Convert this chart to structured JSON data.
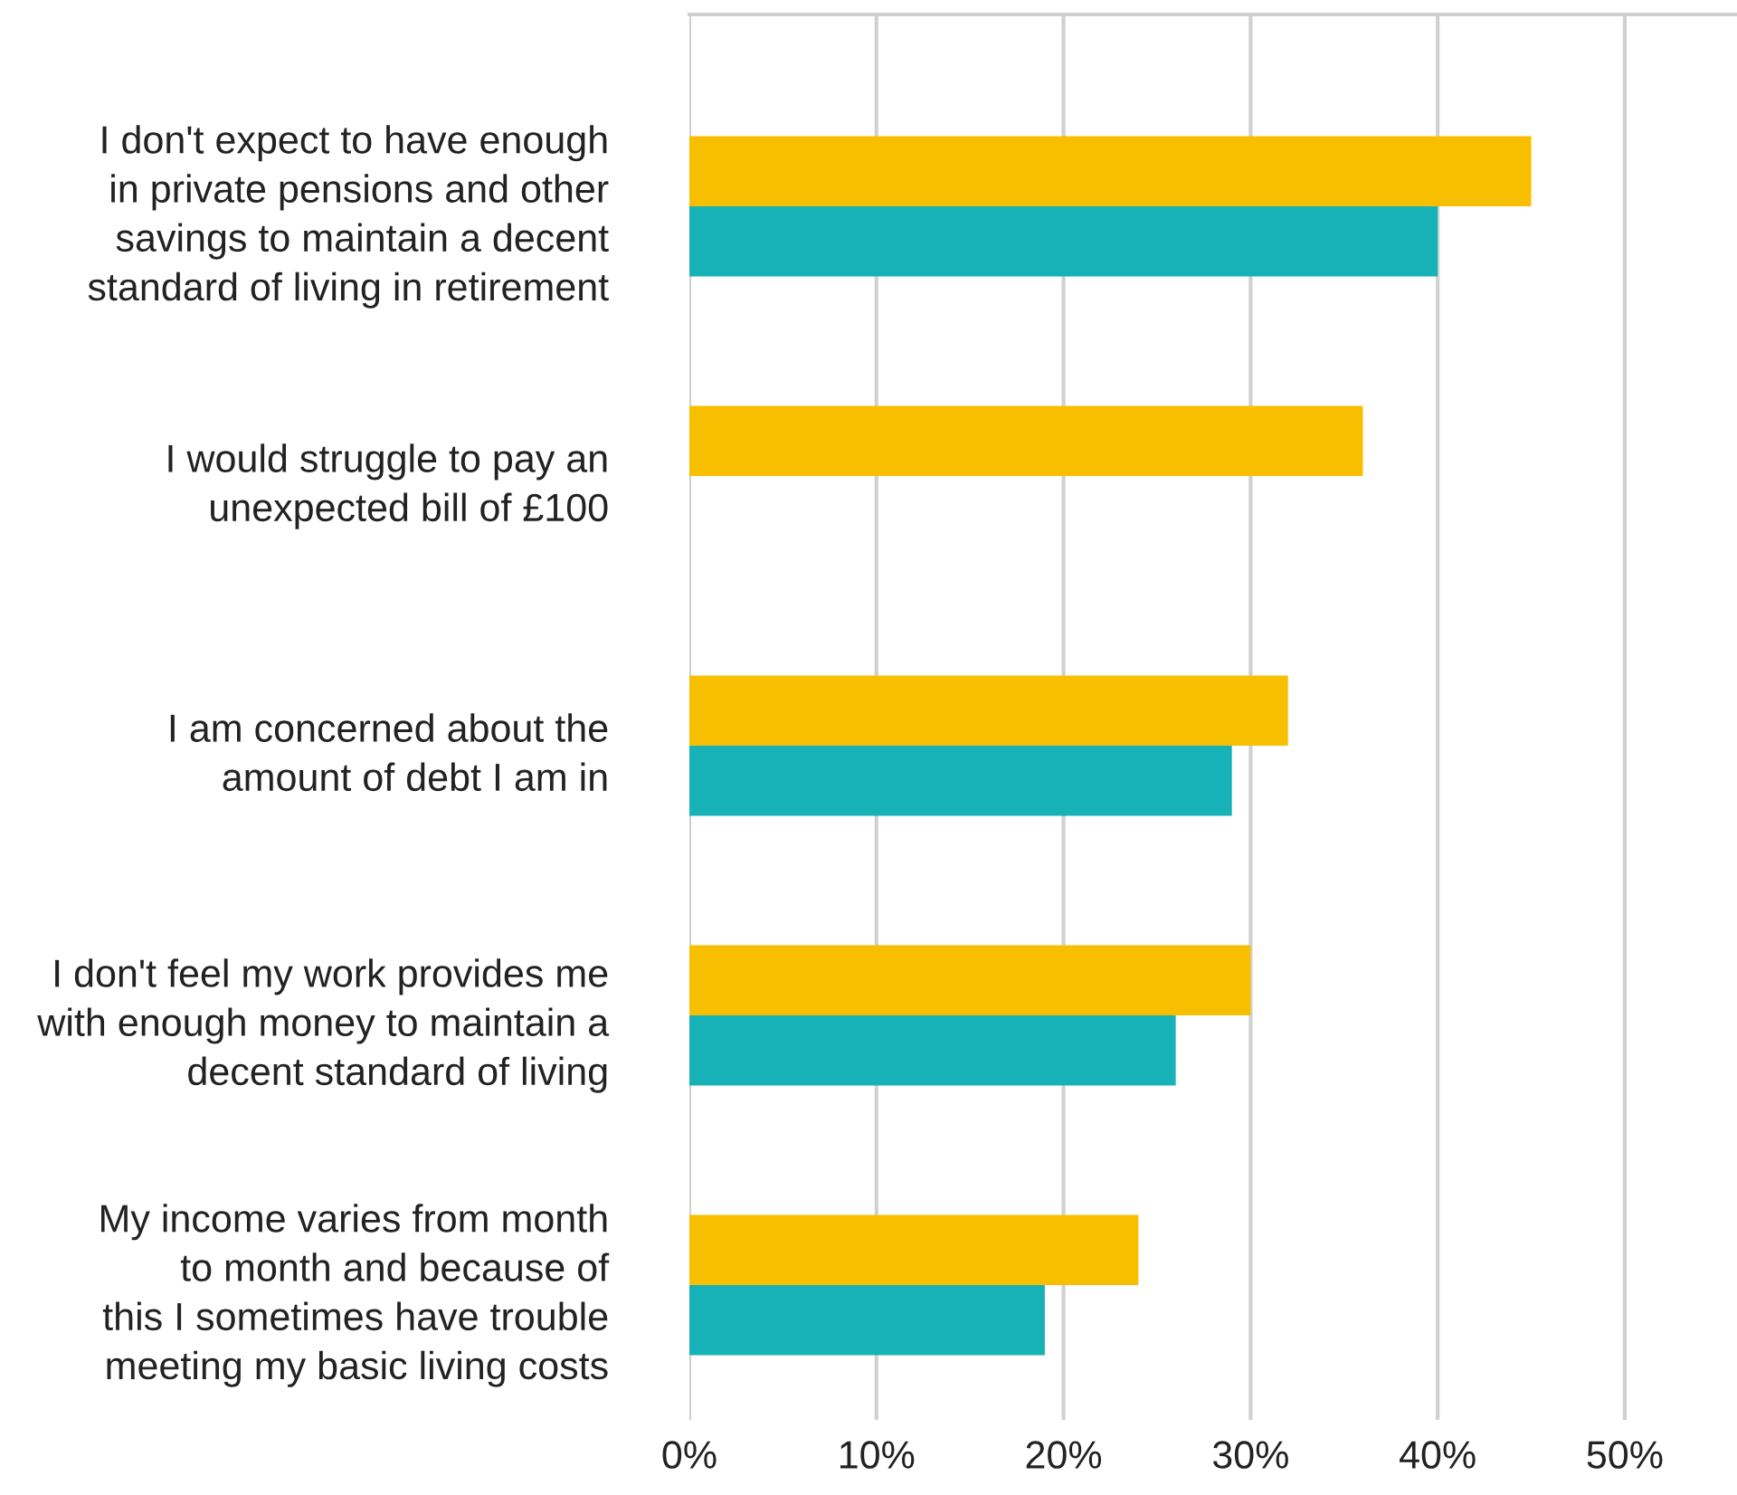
{
  "chart_data": {
    "type": "bar",
    "orientation": "horizontal",
    "categories": [
      "I don't expect to have enough\nin private pensions and other\nsavings to maintain a decent\nstandard of living in retirement",
      "I would struggle to pay an\nunexpected bill of £100",
      "I am concerned about the\namount of debt I am in",
      "I don't feel my work provides me\nwith enough money to maintain a\ndecent standard of living",
      "My income varies from month\nto month and because of\nthis I sometimes have trouble\nmeeting my basic living costs"
    ],
    "series": [
      {
        "color": "#f8bf00",
        "values": [
          45,
          36,
          32,
          30,
          24
        ]
      },
      {
        "color": "#16b2b8",
        "values": [
          40,
          null,
          29,
          26,
          19
        ]
      }
    ],
    "xlim": [
      0,
      56
    ],
    "xticks": [
      {
        "value": 0,
        "label": "0%"
      },
      {
        "value": 10,
        "label": "10%"
      },
      {
        "value": 20,
        "label": "20%"
      },
      {
        "value": 30,
        "label": "30%"
      },
      {
        "value": 40,
        "label": "40%"
      },
      {
        "value": 50,
        "label": "50%"
      }
    ],
    "grid": "x",
    "legend": false
  }
}
